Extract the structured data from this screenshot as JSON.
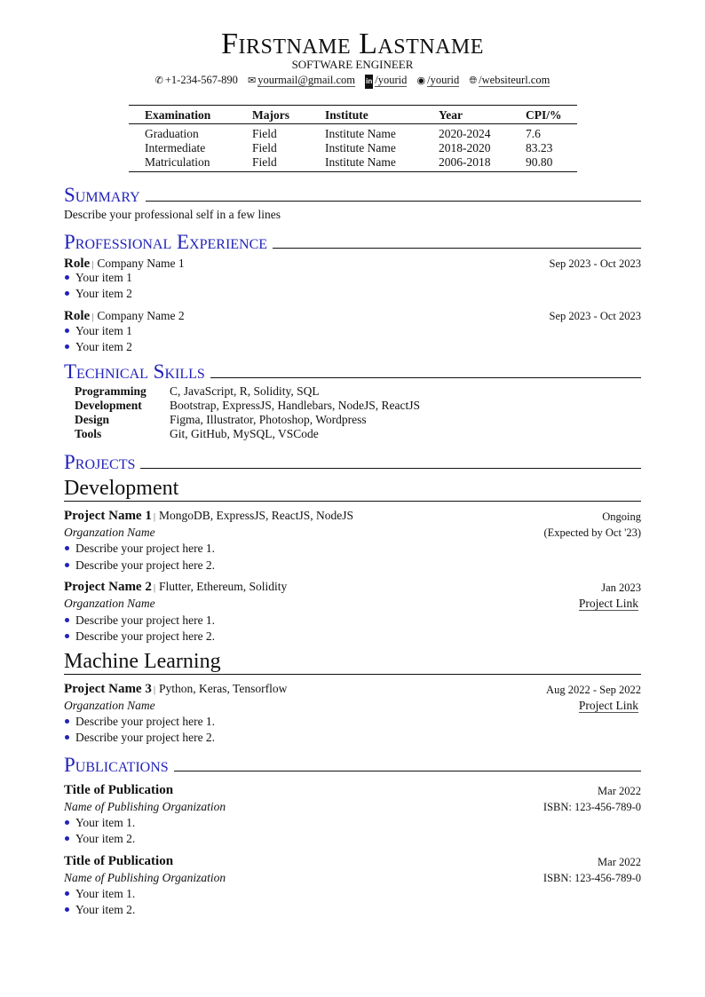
{
  "header": {
    "name": "Firstname Lastname",
    "title": "SOFTWARE ENGINEER",
    "contacts": [
      {
        "icon": "phone-icon",
        "text": "+1-234-567-890"
      },
      {
        "icon": "envelope-icon",
        "text": "yourmail@gmail.com"
      },
      {
        "icon": "linkedin-icon",
        "text": "/yourid"
      },
      {
        "icon": "github-icon",
        "text": "/yourid"
      },
      {
        "icon": "globe-icon",
        "text": "/websiteurl.com"
      }
    ]
  },
  "education": {
    "headers": [
      "Examination",
      "Majors",
      "Institute",
      "Year",
      "CPI/%"
    ],
    "rows": [
      [
        "Graduation",
        "Field",
        "Institute Name",
        "2020-2024",
        "7.6"
      ],
      [
        "Intermediate",
        "Field",
        "Institute Name",
        "2018-2020",
        "83.23"
      ],
      [
        "Matriculation",
        "Field",
        "Institute Name",
        "2006-2018",
        "90.80"
      ]
    ]
  },
  "summary": {
    "heading": "Summary",
    "text": "Describe your professional self in a few lines"
  },
  "experience": {
    "heading": "Professional Experience",
    "items": [
      {
        "role": "Role",
        "company": "Company Name 1",
        "dates": "Sep 2023 - Oct 2023",
        "bullets": [
          "Your item 1",
          "Your item 2"
        ]
      },
      {
        "role": "Role",
        "company": "Company Name 2",
        "dates": "Sep 2023 - Oct 2023",
        "bullets": [
          "Your item 1",
          "Your item 2"
        ]
      }
    ]
  },
  "skills": {
    "heading": "Technical Skills",
    "rows": [
      {
        "label": "Programming",
        "value": "C, JavaScript, R, Solidity, SQL"
      },
      {
        "label": "Development",
        "value": "Bootstrap, ExpressJS, Handlebars, NodeJS, ReactJS"
      },
      {
        "label": "Design",
        "value": "Figma, Illustrator, Photoshop, Wordpress"
      },
      {
        "label": "Tools",
        "value": "Git, GitHub, MySQL, VSCode"
      }
    ]
  },
  "projects": {
    "heading": "Projects",
    "groups": [
      {
        "title": "Development",
        "items": [
          {
            "name": "Project Name 1",
            "tech": "MongoDB, ExpressJS, ReactJS, NodeJS",
            "date": "Ongoing",
            "org": "Organzation Name",
            "right2": "(Expected by Oct '23)",
            "bullets": [
              "Describe your project here 1.",
              "Describe your project here 2."
            ]
          },
          {
            "name": "Project Name 2",
            "tech": "Flutter, Ethereum, Solidity",
            "date": "Jan 2023",
            "org": "Organzation Name",
            "right2": "Project Link",
            "bullets": [
              "Describe your project here 1.",
              "Describe your project here 2."
            ]
          }
        ]
      },
      {
        "title": "Machine Learning",
        "items": [
          {
            "name": "Project Name 3",
            "tech": "Python, Keras, Tensorflow",
            "date": "Aug 2022 - Sep 2022",
            "org": "Organzation Name",
            "right2": "Project Link",
            "bullets": [
              "Describe your project here 1.",
              "Describe your project here 2."
            ]
          }
        ]
      }
    ]
  },
  "publications": {
    "heading": "Publications",
    "items": [
      {
        "title": "Title of Publication",
        "date": "Mar 2022",
        "org": "Name of Publishing Organization",
        "isbn": "ISBN: 123-456-789-0",
        "bullets": [
          "Your item 1.",
          "Your item 2."
        ]
      },
      {
        "title": "Title of Publication",
        "date": "Mar 2022",
        "org": "Name of Publishing Organization",
        "isbn": "ISBN: 123-456-789-0",
        "bullets": [
          "Your item 1.",
          "Your item 2."
        ]
      }
    ]
  },
  "colors": {
    "accent": "#2222bb",
    "text": "#111111"
  }
}
